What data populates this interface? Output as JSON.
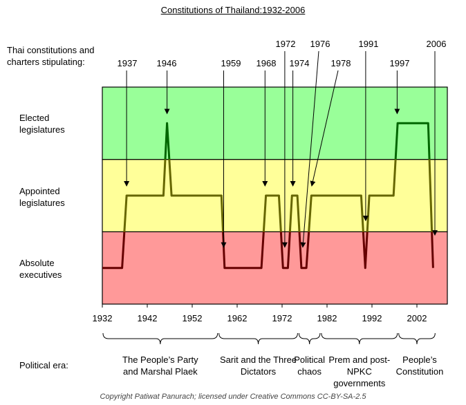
{
  "chart_data": {
    "type": "line",
    "title": "Constitutions of Thailand:1932-2006",
    "ylabel": "Thai constitutions and charters stipulating:",
    "levels": [
      "Absolute executives",
      "Appointed legislatures",
      "Elected legislatures"
    ],
    "level_colors": [
      "#ff9999",
      "#ffff99",
      "#99ff99"
    ],
    "xlim": [
      1932,
      2008.8
    ],
    "x_ticks": [
      1932,
      1942,
      1952,
      1962,
      1972,
      1982,
      1992,
      2002
    ],
    "points": [
      [
        1932,
        0
      ],
      [
        1936.4,
        0
      ],
      [
        1937.4,
        1
      ],
      [
        1945.6,
        1
      ],
      [
        1946.4,
        2
      ],
      [
        1947.4,
        1
      ],
      [
        1958.5,
        1
      ],
      [
        1959.2,
        0
      ],
      [
        1967.4,
        0
      ],
      [
        1968.4,
        1
      ],
      [
        1971.3,
        1
      ],
      [
        1972.2,
        0
      ],
      [
        1973.3,
        0
      ],
      [
        1974.2,
        1
      ],
      [
        1975.4,
        1
      ],
      [
        1976.3,
        0
      ],
      [
        1977.4,
        0
      ],
      [
        1978.5,
        1
      ],
      [
        1989.6,
        1
      ],
      [
        1990.5,
        0
      ],
      [
        1991.4,
        1
      ],
      [
        1996.8,
        1
      ],
      [
        1997.7,
        2
      ],
      [
        2004.5,
        2
      ],
      [
        2005.6,
        0
      ]
    ],
    "annotations": [
      {
        "label": "1937",
        "year": 1937.4,
        "level": 1
      },
      {
        "label": "1946",
        "year": 1946.4,
        "level": 2
      },
      {
        "label": "1959",
        "year": 1959.0,
        "level": 0
      },
      {
        "label": "1968",
        "year": 1968.2,
        "level": 1
      },
      {
        "label": "1972",
        "year": 1972.6,
        "level": 0
      },
      {
        "label": "1974",
        "year": 1974.4,
        "level": 1
      },
      {
        "label": "1976",
        "year": 1976.6,
        "level": 0
      },
      {
        "label": "1978",
        "year": 1978.6,
        "level": 1
      },
      {
        "label": "1991",
        "year": 1990.6,
        "level": 0.75
      },
      {
        "label": "1997",
        "year": 1997.6,
        "level": 2
      },
      {
        "label": "2006",
        "year": 2006.0,
        "level": 0.55
      }
    ],
    "eras_label": "Political era:",
    "eras": [
      {
        "name": "The People’s Party and Marshal Plaek",
        "start": 1932,
        "end": 1957.8
      },
      {
        "name": "Sarit and the Three Dictators",
        "start": 1957.8,
        "end": 1975.6
      },
      {
        "name": "Political chaos",
        "start": 1975.6,
        "end": 1980.6
      },
      {
        "name": "Prem and post-NPKC governments",
        "start": 1980.6,
        "end": 1997.8
      },
      {
        "name": "People’s Constitution",
        "start": 1997.8,
        "end": 2006.2
      }
    ],
    "line_color": "#000000"
  },
  "copyright": "Copyright Patiwat Panurach; licensed under Creative Commons CC-BY-SA-2.5"
}
